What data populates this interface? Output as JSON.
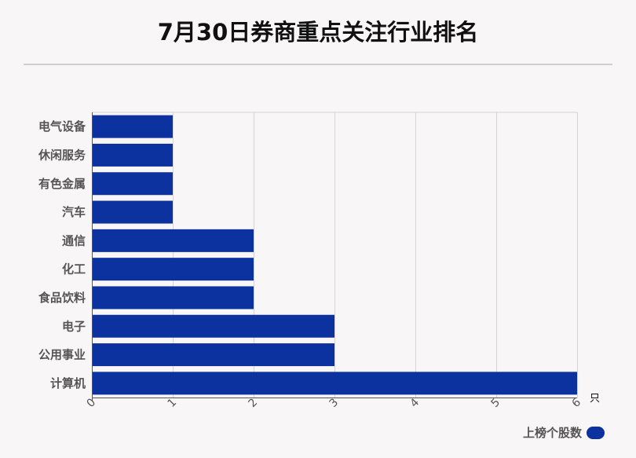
{
  "chart_data": {
    "type": "bar",
    "orientation": "horizontal",
    "title": "7月30日券商重点关注行业排名",
    "categories": [
      "电气设备",
      "休闲服务",
      "有色金属",
      "汽车",
      "通信",
      "化工",
      "食品饮料",
      "电子",
      "公用事业",
      "计算机"
    ],
    "series": [
      {
        "name": "上榜个股数",
        "values": [
          1,
          1,
          1,
          1,
          2,
          2,
          2,
          3,
          3,
          6
        ]
      }
    ],
    "xlim": [
      0,
      6
    ],
    "xticks": [
      0,
      1,
      2,
      3,
      4,
      5,
      6
    ],
    "xunit": "只",
    "grid": true,
    "legend_position": "bottom-right",
    "bar_color": "#0c32a0"
  }
}
